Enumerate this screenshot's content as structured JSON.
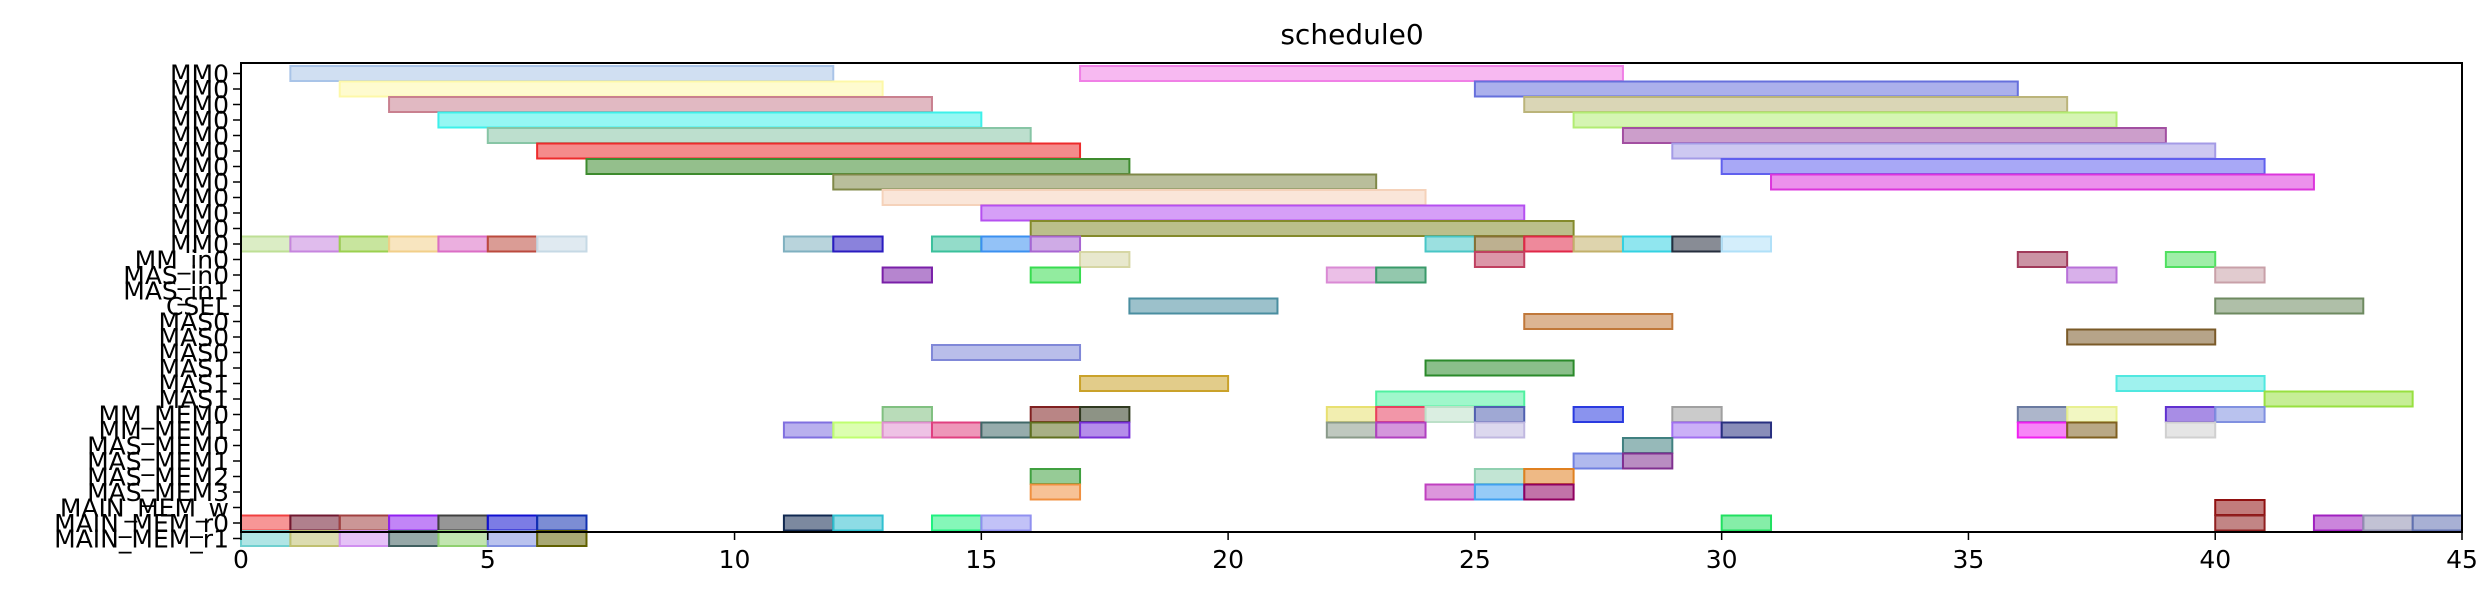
{
  "chart_data": {
    "type": "gantt",
    "title": "schedule0",
    "xlim": [
      0,
      45
    ],
    "xticks": [
      0,
      5,
      10,
      15,
      20,
      25,
      30,
      35,
      40,
      45
    ],
    "xtick_labels": [
      "0",
      "5",
      "10",
      "15",
      "20",
      "25",
      "30",
      "35",
      "40",
      "45"
    ],
    "grid": false,
    "rows": [
      "MM0",
      "MM0",
      "MM0",
      "MM0",
      "MM0",
      "MM0",
      "MM0",
      "MM0",
      "MM0",
      "MM0",
      "MM0",
      "MM0",
      "MM_in0",
      "MAS_in0",
      "MAS_in1",
      "CSEL",
      "MAS0",
      "MAS0",
      "MAS0",
      "MAS1",
      "MAS1",
      "MAS1",
      "MM_MEM0",
      "MM_MEM1",
      "MAS_MEM0",
      "MAS_MEM1",
      "MAS_MEM2",
      "MAS_MEM3",
      "MAIN_MEM_w",
      "MAIN_MEM_r0",
      "MAIN_MEM_r1"
    ],
    "tasks": [
      {
        "row": 0,
        "start": 1,
        "end": 12,
        "color": "#a9c4e8"
      },
      {
        "row": 0,
        "start": 17,
        "end": 28,
        "color": "#f080e6"
      },
      {
        "row": 1,
        "start": 2,
        "end": 13,
        "color": "#fdf8a8"
      },
      {
        "row": 1,
        "start": 25,
        "end": 36,
        "color": "#6670dc"
      },
      {
        "row": 2,
        "start": 3,
        "end": 14,
        "color": "#c9808f"
      },
      {
        "row": 2,
        "start": 26,
        "end": 37,
        "color": "#bbb47a"
      },
      {
        "row": 3,
        "start": 4,
        "end": 15,
        "color": "#3ef0ea"
      },
      {
        "row": 3,
        "start": 27,
        "end": 38,
        "color": "#b2ec73"
      },
      {
        "row": 4,
        "start": 5,
        "end": 16,
        "color": "#87c5a5"
      },
      {
        "row": 4,
        "start": 28,
        "end": 39,
        "color": "#a24fa1"
      },
      {
        "row": 5,
        "start": 6,
        "end": 17,
        "color": "#ed2b2b"
      },
      {
        "row": 5,
        "start": 29,
        "end": 40,
        "color": "#a49be6"
      },
      {
        "row": 6,
        "start": 7,
        "end": 18,
        "color": "#3d8b2e"
      },
      {
        "row": 6,
        "start": 30,
        "end": 41,
        "color": "#6060ee"
      },
      {
        "row": 7,
        "start": 12,
        "end": 23,
        "color": "#808848"
      },
      {
        "row": 7,
        "start": 31,
        "end": 42,
        "color": "#dc36dc"
      },
      {
        "row": 8,
        "start": 13,
        "end": 24,
        "color": "#f5d2ba"
      },
      {
        "row": 9,
        "start": 15,
        "end": 26,
        "color": "#b550f0"
      },
      {
        "row": 10,
        "start": 16,
        "end": 27,
        "color": "#848a2c"
      },
      {
        "row": 11,
        "start": 0,
        "end": 1,
        "color": "#bedf95"
      },
      {
        "row": 11,
        "start": 1,
        "end": 2,
        "color": "#c685de"
      },
      {
        "row": 11,
        "start": 2,
        "end": 3,
        "color": "#9bd04f"
      },
      {
        "row": 11,
        "start": 3,
        "end": 4,
        "color": "#f2cf8a"
      },
      {
        "row": 11,
        "start": 4,
        "end": 5,
        "color": "#db6ec5"
      },
      {
        "row": 11,
        "start": 5,
        "end": 6,
        "color": "#bb4a3e"
      },
      {
        "row": 11,
        "start": 6,
        "end": 7,
        "color": "#c6d9e5"
      },
      {
        "row": 11,
        "start": 11,
        "end": 12,
        "color": "#7fb0c0"
      },
      {
        "row": 11,
        "start": 12,
        "end": 13,
        "color": "#2a1cc0"
      },
      {
        "row": 11,
        "start": 14,
        "end": 15,
        "color": "#3bc09c"
      },
      {
        "row": 11,
        "start": 15,
        "end": 16,
        "color": "#3b90f0"
      },
      {
        "row": 11,
        "start": 16,
        "end": 17,
        "color": "#a866d2"
      },
      {
        "row": 11,
        "start": 24,
        "end": 25,
        "color": "#48c6c6"
      },
      {
        "row": 11,
        "start": 25,
        "end": 26,
        "color": "#867034"
      },
      {
        "row": 11,
        "start": 26,
        "end": 27,
        "color": "#e02848"
      },
      {
        "row": 11,
        "start": 27,
        "end": 28,
        "color": "#c2b06a"
      },
      {
        "row": 11,
        "start": 28,
        "end": 29,
        "color": "#34d2e2"
      },
      {
        "row": 11,
        "start": 29,
        "end": 30,
        "color": "#262e3e"
      },
      {
        "row": 11,
        "start": 30,
        "end": 31,
        "color": "#b0e0f8"
      },
      {
        "row": 12,
        "start": 17,
        "end": 18,
        "color": "#d6d6a4"
      },
      {
        "row": 12,
        "start": 25,
        "end": 26,
        "color": "#c04060"
      },
      {
        "row": 12,
        "start": 36,
        "end": 37,
        "color": "#a03a5a"
      },
      {
        "row": 12,
        "start": 39,
        "end": 40,
        "color": "#50e060"
      },
      {
        "row": 13,
        "start": 13,
        "end": 14,
        "color": "#7a20a8"
      },
      {
        "row": 13,
        "start": 16,
        "end": 17,
        "color": "#38dc50"
      },
      {
        "row": 13,
        "start": 22,
        "end": 23,
        "color": "#da8ad4"
      },
      {
        "row": 13,
        "start": 23,
        "end": 24,
        "color": "#3a9a6a"
      },
      {
        "row": 13,
        "start": 37,
        "end": 38,
        "color": "#b870d8"
      },
      {
        "row": 13,
        "start": 40,
        "end": 41,
        "color": "#c8a0a8"
      },
      {
        "row": 15,
        "start": 18,
        "end": 21,
        "color": "#4a8ea0"
      },
      {
        "row": 15,
        "start": 40,
        "end": 43,
        "color": "#6e8a60"
      },
      {
        "row": 16,
        "start": 26,
        "end": 29,
        "color": "#c0783a"
      },
      {
        "row": 17,
        "start": 37,
        "end": 40,
        "color": "#7a5a28"
      },
      {
        "row": 18,
        "start": 14,
        "end": 17,
        "color": "#8088d8"
      },
      {
        "row": 19,
        "start": 24,
        "end": 27,
        "color": "#2a8a2a"
      },
      {
        "row": 20,
        "start": 17,
        "end": 20,
        "color": "#caa22a"
      },
      {
        "row": 20,
        "start": 38,
        "end": 41,
        "color": "#50e8e0"
      },
      {
        "row": 21,
        "start": 23,
        "end": 26,
        "color": "#50f0a0"
      },
      {
        "row": 21,
        "start": 41,
        "end": 44,
        "color": "#98e040"
      },
      {
        "row": 22,
        "start": 13,
        "end": 14,
        "color": "#80c080"
      },
      {
        "row": 22,
        "start": 16,
        "end": 17,
        "color": "#802020"
      },
      {
        "row": 22,
        "start": 17,
        "end": 18,
        "color": "#303a20"
      },
      {
        "row": 22,
        "start": 22,
        "end": 23,
        "color": "#e8e070"
      },
      {
        "row": 22,
        "start": 23,
        "end": 24,
        "color": "#e84060"
      },
      {
        "row": 22,
        "start": 24,
        "end": 25,
        "color": "#bce0c8"
      },
      {
        "row": 22,
        "start": 25,
        "end": 26,
        "color": "#5060b0"
      },
      {
        "row": 22,
        "start": 27,
        "end": 28,
        "color": "#2a3ae0"
      },
      {
        "row": 22,
        "start": 29,
        "end": 30,
        "color": "#a0a0a0"
      },
      {
        "row": 22,
        "start": 36,
        "end": 37,
        "color": "#6a7aa0"
      },
      {
        "row": 22,
        "start": 37,
        "end": 38,
        "color": "#e8f090"
      },
      {
        "row": 22,
        "start": 39,
        "end": 40,
        "color": "#6030d0"
      },
      {
        "row": 22,
        "start": 40,
        "end": 41,
        "color": "#8090e0"
      },
      {
        "row": 23,
        "start": 11,
        "end": 12,
        "color": "#8070e0"
      },
      {
        "row": 23,
        "start": 12,
        "end": 13,
        "color": "#c0ff70"
      },
      {
        "row": 23,
        "start": 13,
        "end": 14,
        "color": "#e090d0"
      },
      {
        "row": 23,
        "start": 14,
        "end": 15,
        "color": "#e04080"
      },
      {
        "row": 23,
        "start": 15,
        "end": 16,
        "color": "#406868"
      },
      {
        "row": 23,
        "start": 16,
        "end": 17,
        "color": "#607020"
      },
      {
        "row": 23,
        "start": 17,
        "end": 18,
        "color": "#7830d8"
      },
      {
        "row": 23,
        "start": 22,
        "end": 23,
        "color": "#8a9a8a"
      },
      {
        "row": 23,
        "start": 23,
        "end": 24,
        "color": "#b040c0"
      },
      {
        "row": 23,
        "start": 25,
        "end": 26,
        "color": "#c0b8e0"
      },
      {
        "row": 23,
        "start": 29,
        "end": 30,
        "color": "#a070f0"
      },
      {
        "row": 23,
        "start": 30,
        "end": 31,
        "color": "#283080"
      },
      {
        "row": 23,
        "start": 36,
        "end": 37,
        "color": "#f020f0"
      },
      {
        "row": 23,
        "start": 37,
        "end": 38,
        "color": "#806020"
      },
      {
        "row": 23,
        "start": 39,
        "end": 40,
        "color": "#d0d0d0"
      },
      {
        "row": 24,
        "start": 28,
        "end": 29,
        "color": "#408080"
      },
      {
        "row": 25,
        "start": 27,
        "end": 28,
        "color": "#7080e0"
      },
      {
        "row": 25,
        "start": 28,
        "end": 29,
        "color": "#803090"
      },
      {
        "row": 26,
        "start": 16,
        "end": 17,
        "color": "#40a040"
      },
      {
        "row": 26,
        "start": 25,
        "end": 26,
        "color": "#90d0b0"
      },
      {
        "row": 26,
        "start": 26,
        "end": 27,
        "color": "#e08020"
      },
      {
        "row": 27,
        "start": 16,
        "end": 17,
        "color": "#f09040"
      },
      {
        "row": 27,
        "start": 24,
        "end": 25,
        "color": "#c040c0"
      },
      {
        "row": 27,
        "start": 25,
        "end": 26,
        "color": "#40a0f0"
      },
      {
        "row": 27,
        "start": 26,
        "end": 27,
        "color": "#900060"
      },
      {
        "row": 28,
        "start": 40,
        "end": 41,
        "color": "#901010"
      },
      {
        "row": 29,
        "start": 0,
        "end": 1,
        "color": "#f04040"
      },
      {
        "row": 29,
        "start": 1,
        "end": 2,
        "color": "#701830"
      },
      {
        "row": 29,
        "start": 2,
        "end": 3,
        "color": "#a04040"
      },
      {
        "row": 29,
        "start": 3,
        "end": 4,
        "color": "#9020f0"
      },
      {
        "row": 29,
        "start": 4,
        "end": 5,
        "color": "#404040"
      },
      {
        "row": 29,
        "start": 5,
        "end": 6,
        "color": "#1010d0"
      },
      {
        "row": 29,
        "start": 6,
        "end": 7,
        "color": "#1030b0"
      },
      {
        "row": 29,
        "start": 11,
        "end": 12,
        "color": "#102850"
      },
      {
        "row": 29,
        "start": 12,
        "end": 13,
        "color": "#30c0d0"
      },
      {
        "row": 29,
        "start": 14,
        "end": 15,
        "color": "#20f080"
      },
      {
        "row": 29,
        "start": 15,
        "end": 16,
        "color": "#9090f0"
      },
      {
        "row": 29,
        "start": 30,
        "end": 31,
        "color": "#20e060"
      },
      {
        "row": 29,
        "start": 40,
        "end": 41,
        "color": "#902020"
      },
      {
        "row": 29,
        "start": 42,
        "end": 43,
        "color": "#a020c0"
      },
      {
        "row": 29,
        "start": 43,
        "end": 44,
        "color": "#9090b0"
      },
      {
        "row": 29,
        "start": 44,
        "end": 45,
        "color": "#6070b0"
      },
      {
        "row": 30,
        "start": 0,
        "end": 1,
        "color": "#70d0d0"
      },
      {
        "row": 30,
        "start": 1,
        "end": 2,
        "color": "#c0c070"
      },
      {
        "row": 30,
        "start": 2,
        "end": 3,
        "color": "#d090f0"
      },
      {
        "row": 30,
        "start": 3,
        "end": 4,
        "color": "#406060"
      },
      {
        "row": 30,
        "start": 4,
        "end": 5,
        "color": "#90d070"
      },
      {
        "row": 30,
        "start": 5,
        "end": 6,
        "color": "#8090e0"
      },
      {
        "row": 30,
        "start": 6,
        "end": 7,
        "color": "#606000"
      }
    ]
  }
}
